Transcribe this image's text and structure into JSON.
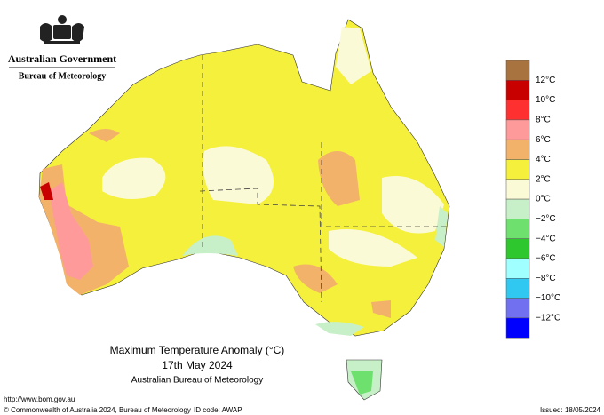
{
  "header": {
    "government": "Australian Government",
    "agency": "Bureau of Meteorology"
  },
  "map": {
    "title": "Maximum Temperature Anomaly (°C)",
    "date": "17th May 2024",
    "source": "Australian Bureau of Meteorology"
  },
  "legend": {
    "colors": [
      "#a8733e",
      "#c80000",
      "#ff3030",
      "#ff9a9a",
      "#f2b26a",
      "#f5f03c",
      "#fbfad6",
      "#c8f0c8",
      "#6ee06e",
      "#2ec82e",
      "#a0ffff",
      "#30c8f0",
      "#7070f0",
      "#0000ff"
    ],
    "labels": [
      "12°C",
      "10°C",
      "8°C",
      "6°C",
      "4°C",
      "2°C",
      "0°C",
      "−2°C",
      "−4°C",
      "−6°C",
      "−8°C",
      "−10°C",
      "−12°C"
    ]
  },
  "footer": {
    "url": "http://www.bom.gov.au",
    "copyright": "© Commonwealth of Australia 2024, Bureau of Meteorology",
    "id_code": "ID code: AWAP",
    "issued": "Issued: 18/05/2024"
  }
}
